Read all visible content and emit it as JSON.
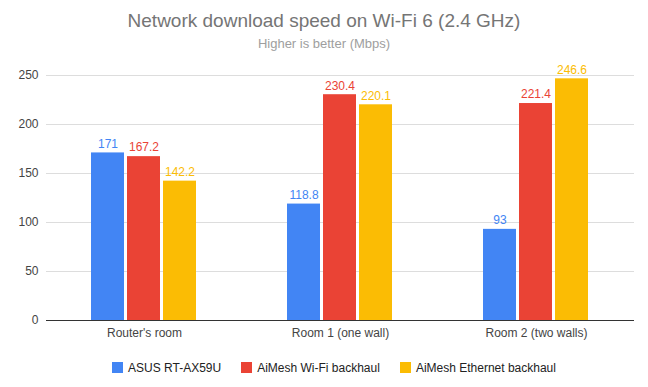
{
  "chart_data": {
    "type": "bar",
    "title": "Network download speed on Wi-Fi 6 (2.4 GHz)",
    "subtitle": "Higher is better (Mbps)",
    "categories": [
      "Router's room",
      "Room 1 (one wall)",
      "Room 2 (two walls)"
    ],
    "series": [
      {
        "name": "ASUS RT-AX59U",
        "color": "#4285f4",
        "values": [
          171,
          118.8,
          93
        ]
      },
      {
        "name": "AiMesh Wi-Fi backhaul",
        "color": "#ea4335",
        "values": [
          167.2,
          230.4,
          221.4
        ]
      },
      {
        "name": "AiMesh Ethernet backhaul",
        "color": "#fbbc04",
        "values": [
          142.2,
          220.1,
          246.6
        ]
      }
    ],
    "ylim": [
      0,
      250
    ],
    "yticks": [
      0,
      50,
      100,
      150,
      200,
      250
    ],
    "grid": true,
    "data_labels": true,
    "legend": "bottom"
  }
}
